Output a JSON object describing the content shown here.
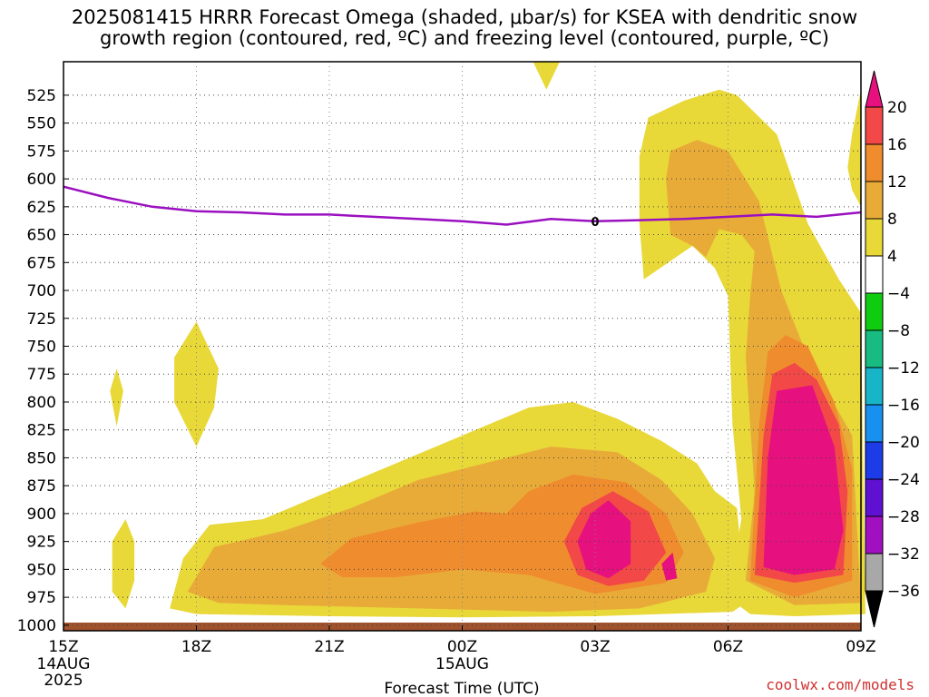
{
  "title_line1": "2025081415 HRRR Forecast Omega (shaded, μbar/s) for KSEA with dendritic snow",
  "title_line2": "growth region (contoured, red, ºC) and freezing level (contoured, purple, ºC)",
  "credit": "coolwx.com/models",
  "chart_data": {
    "type": "heatmap",
    "xlabel": "Forecast Time (UTC)",
    "ylabel": "",
    "x_tick_labels": [
      {
        "hour": 0,
        "label": "15Z",
        "sub": [
          "14AUG",
          "2025"
        ]
      },
      {
        "hour": 3,
        "label": "18Z",
        "sub": []
      },
      {
        "hour": 6,
        "label": "21Z",
        "sub": []
      },
      {
        "hour": 9,
        "label": "00Z",
        "sub": [
          "15AUG"
        ]
      },
      {
        "hour": 12,
        "label": "03Z",
        "sub": []
      },
      {
        "hour": 15,
        "label": "06Z",
        "sub": []
      },
      {
        "hour": 18,
        "label": "09Z",
        "sub": []
      }
    ],
    "xlim_hours": [
      0,
      18
    ],
    "y_pressure_hPa": [
      525,
      550,
      575,
      600,
      625,
      650,
      675,
      700,
      725,
      750,
      775,
      800,
      825,
      850,
      875,
      900,
      925,
      950,
      975,
      1000
    ],
    "ylim_hPa": [
      495,
      1005
    ],
    "grid": true,
    "colorbar": {
      "bins": [
        {
          "lo": 20,
          "hi": null,
          "color": "#e6107e"
        },
        {
          "lo": 16,
          "hi": 20,
          "color": "#f24848"
        },
        {
          "lo": 12,
          "hi": 16,
          "color": "#ef8c2e"
        },
        {
          "lo": 8,
          "hi": 12,
          "color": "#e8ab38"
        },
        {
          "lo": 4,
          "hi": 8,
          "color": "#e8d838"
        },
        {
          "lo": -4,
          "hi": 4,
          "color": "#ffffff"
        },
        {
          "lo": -8,
          "hi": -4,
          "color": "#10cc10"
        },
        {
          "lo": -12,
          "hi": -8,
          "color": "#18bc80"
        },
        {
          "lo": -16,
          "hi": -12,
          "color": "#18b4c8"
        },
        {
          "lo": -20,
          "hi": -16,
          "color": "#1890f0"
        },
        {
          "lo": -24,
          "hi": -20,
          "color": "#1c3ce8"
        },
        {
          "lo": -28,
          "hi": -24,
          "color": "#6010d0"
        },
        {
          "lo": -32,
          "hi": -28,
          "color": "#a010c0"
        },
        {
          "lo": -36,
          "hi": -32,
          "color": "#a8a8a8"
        },
        {
          "lo": null,
          "hi": -36,
          "color": "#000000"
        }
      ],
      "tick_labels": [
        "20",
        "16",
        "12",
        "8",
        "4",
        "−4",
        "−8",
        "−12",
        "−16",
        "−20",
        "−24",
        "−28",
        "−32",
        "−36"
      ]
    },
    "freezing_level": {
      "label": "0",
      "color": "#9a10c0",
      "points": [
        [
          0,
          607
        ],
        [
          1,
          617
        ],
        [
          2,
          625
        ],
        [
          3,
          629
        ],
        [
          4,
          630
        ],
        [
          5,
          632
        ],
        [
          6,
          632
        ],
        [
          7,
          634
        ],
        [
          8,
          636
        ],
        [
          9,
          638
        ],
        [
          10,
          641
        ],
        [
          11,
          636
        ],
        [
          12,
          638
        ],
        [
          13,
          637
        ],
        [
          14,
          636
        ],
        [
          15,
          634
        ],
        [
          16,
          632
        ],
        [
          17,
          634
        ],
        [
          18,
          630
        ]
      ]
    },
    "omega_regions": [
      {
        "bin": 4,
        "points": [
          [
            1.1,
            925
          ],
          [
            1.4,
            905
          ],
          [
            1.6,
            925
          ],
          [
            1.6,
            960
          ],
          [
            1.4,
            985
          ],
          [
            1.1,
            970
          ]
        ]
      },
      {
        "bin": 4,
        "points": [
          [
            1.05,
            790
          ],
          [
            1.2,
            770
          ],
          [
            1.35,
            790
          ],
          [
            1.2,
            822
          ]
        ]
      },
      {
        "bin": 4,
        "points": [
          [
            2.5,
            760
          ],
          [
            3.0,
            728
          ],
          [
            3.5,
            770
          ],
          [
            3.4,
            805
          ],
          [
            3.0,
            840
          ],
          [
            2.5,
            800
          ]
        ]
      },
      {
        "bin": 4,
        "points": [
          [
            2.4,
            985
          ],
          [
            2.7,
            940
          ],
          [
            3.3,
            910
          ],
          [
            4.5,
            905
          ],
          [
            6.0,
            880
          ],
          [
            7.5,
            855
          ],
          [
            9.0,
            830
          ],
          [
            10.5,
            805
          ],
          [
            11.5,
            800
          ],
          [
            12.5,
            815
          ],
          [
            13.5,
            835
          ],
          [
            14.3,
            855
          ],
          [
            14.7,
            880
          ],
          [
            15.2,
            895
          ],
          [
            15.4,
            980
          ],
          [
            15.1,
            988
          ],
          [
            12.0,
            992
          ],
          [
            9.0,
            993
          ],
          [
            6.0,
            992
          ],
          [
            3.0,
            990
          ]
        ]
      },
      {
        "bin": 8,
        "points": [
          [
            2.8,
            970
          ],
          [
            3.4,
            930
          ],
          [
            5.0,
            915
          ],
          [
            6.5,
            895
          ],
          [
            8.0,
            870
          ],
          [
            9.5,
            855
          ],
          [
            11.0,
            840
          ],
          [
            12.5,
            845
          ],
          [
            13.5,
            870
          ],
          [
            14.2,
            900
          ],
          [
            14.7,
            940
          ],
          [
            14.5,
            970
          ],
          [
            13.0,
            985
          ],
          [
            11.0,
            988
          ],
          [
            8.0,
            985
          ],
          [
            5.0,
            982
          ],
          [
            3.5,
            980
          ]
        ]
      },
      {
        "bin": 12,
        "points": [
          [
            5.8,
            945
          ],
          [
            6.5,
            922
          ],
          [
            8.0,
            908
          ],
          [
            9.3,
            898
          ],
          [
            10.0,
            900
          ],
          [
            10.5,
            880
          ],
          [
            11.5,
            865
          ],
          [
            12.7,
            872
          ],
          [
            13.6,
            900
          ],
          [
            14.0,
            935
          ],
          [
            13.6,
            962
          ],
          [
            12.0,
            972
          ],
          [
            10.5,
            955
          ],
          [
            9.0,
            950
          ],
          [
            7.5,
            957
          ],
          [
            6.3,
            957
          ]
        ]
      },
      {
        "bin": 16,
        "points": [
          [
            11.3,
            925
          ],
          [
            11.7,
            895
          ],
          [
            12.4,
            880
          ],
          [
            13.2,
            898
          ],
          [
            13.6,
            935
          ],
          [
            13.1,
            960
          ],
          [
            12.3,
            965
          ],
          [
            11.6,
            955
          ]
        ]
      },
      {
        "bin": 20,
        "points": [
          [
            11.6,
            925
          ],
          [
            11.9,
            900
          ],
          [
            12.3,
            888
          ],
          [
            12.8,
            907
          ],
          [
            12.8,
            945
          ],
          [
            12.3,
            958
          ],
          [
            11.8,
            950
          ]
        ]
      },
      {
        "bin": 20,
        "points": [
          [
            13.5,
            945
          ],
          [
            13.75,
            935
          ],
          [
            13.85,
            958
          ],
          [
            13.6,
            960
          ]
        ]
      },
      {
        "bin": 4,
        "points": [
          [
            15.0,
            975
          ],
          [
            15.3,
            905
          ],
          [
            15.1,
            820
          ],
          [
            15.0,
            705
          ],
          [
            14.7,
            680
          ],
          [
            14.2,
            660
          ],
          [
            13.1,
            690
          ],
          [
            13.0,
            640
          ],
          [
            13.0,
            580
          ],
          [
            13.2,
            545
          ],
          [
            14.0,
            530
          ],
          [
            14.8,
            520
          ],
          [
            15.2,
            525
          ],
          [
            16.1,
            560
          ],
          [
            16.8,
            640
          ],
          [
            17.5,
            690
          ],
          [
            18.0,
            720
          ],
          [
            18.1,
            990
          ],
          [
            16.5,
            992
          ],
          [
            15.5,
            990
          ]
        ]
      },
      {
        "bin": 8,
        "points": [
          [
            15.4,
            960
          ],
          [
            15.6,
            880
          ],
          [
            15.4,
            760
          ],
          [
            15.5,
            705
          ],
          [
            15.6,
            665
          ],
          [
            15.3,
            650
          ],
          [
            14.8,
            645
          ],
          [
            14.5,
            670
          ],
          [
            14.2,
            660
          ],
          [
            13.7,
            650
          ],
          [
            13.6,
            600
          ],
          [
            13.7,
            575
          ],
          [
            14.3,
            565
          ],
          [
            15.0,
            575
          ],
          [
            15.7,
            620
          ],
          [
            16.2,
            700
          ],
          [
            16.8,
            760
          ],
          [
            17.8,
            830
          ],
          [
            18.0,
            980
          ],
          [
            16.5,
            982
          ]
        ]
      },
      {
        "bin": 12,
        "points": [
          [
            15.5,
            960
          ],
          [
            15.7,
            820
          ],
          [
            15.9,
            755
          ],
          [
            16.3,
            740
          ],
          [
            16.8,
            750
          ],
          [
            17.4,
            800
          ],
          [
            17.8,
            860
          ],
          [
            17.8,
            960
          ],
          [
            16.5,
            975
          ]
        ]
      },
      {
        "bin": 16,
        "points": [
          [
            15.6,
            955
          ],
          [
            15.8,
            830
          ],
          [
            16.0,
            775
          ],
          [
            16.5,
            765
          ],
          [
            17.0,
            780
          ],
          [
            17.5,
            820
          ],
          [
            17.7,
            880
          ],
          [
            17.6,
            955
          ],
          [
            16.5,
            962
          ]
        ]
      },
      {
        "bin": 20,
        "points": [
          [
            15.8,
            948
          ],
          [
            15.9,
            850
          ],
          [
            16.1,
            790
          ],
          [
            16.9,
            785
          ],
          [
            17.4,
            840
          ],
          [
            17.6,
            915
          ],
          [
            17.4,
            950
          ],
          [
            16.5,
            955
          ]
        ]
      },
      {
        "bin": 4,
        "points": [
          [
            17.7,
            590
          ],
          [
            17.8,
            560
          ],
          [
            18.0,
            520
          ],
          [
            18.0,
            625
          ],
          [
            17.8,
            610
          ]
        ]
      },
      {
        "bin": 4,
        "points": [
          [
            10.6,
            495
          ],
          [
            11.2,
            495
          ],
          [
            10.9,
            520
          ]
        ]
      },
      {
        "bin": -4,
        "points": [
          [
            0.75,
            585
          ],
          [
            0.85,
            515
          ],
          [
            1.0,
            545
          ],
          [
            1.05,
            595
          ],
          [
            0.9,
            620
          ],
          [
            0.8,
            610
          ]
        ]
      },
      {
        "bin": -4,
        "points": [
          [
            11.6,
            565
          ],
          [
            11.8,
            560
          ],
          [
            12.0,
            540
          ],
          [
            12.2,
            565
          ],
          [
            12.3,
            640
          ],
          [
            12.0,
            662
          ],
          [
            11.7,
            640
          ]
        ]
      },
      {
        "bin": -4,
        "points": [
          [
            11.7,
            740
          ],
          [
            11.8,
            710
          ],
          [
            12.0,
            665
          ],
          [
            12.3,
            710
          ],
          [
            13.0,
            730
          ],
          [
            13.5,
            755
          ],
          [
            13.9,
            775
          ],
          [
            14.2,
            790
          ],
          [
            14.0,
            810
          ],
          [
            13.7,
            790
          ],
          [
            13.4,
            775
          ],
          [
            12.7,
            758
          ],
          [
            12.1,
            750
          ]
        ]
      }
    ]
  }
}
